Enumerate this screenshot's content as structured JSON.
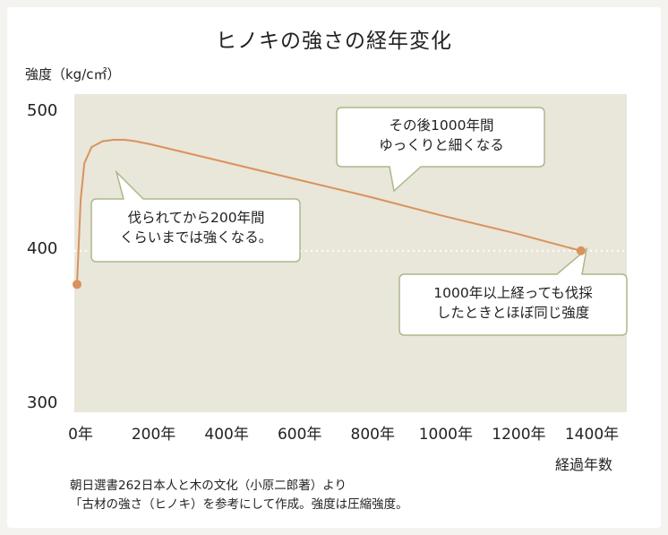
{
  "title": "ヒノキの強さの経年変化",
  "chart_data": {
    "type": "line",
    "title": "ヒノキの強さの経年変化",
    "ylabel": "強度（kg/c㎡）",
    "xlabel": "経過年数",
    "xlim": [
      0,
      1400
    ],
    "ylim": [
      300,
      500
    ],
    "x_ticks": [
      "0年",
      "200年",
      "400年",
      "600年",
      "800年",
      "1000年",
      "1200年",
      "1400年"
    ],
    "y_ticks": [
      "300",
      "400",
      "500"
    ],
    "series": [
      {
        "x": [
          0,
          10,
          20,
          40,
          70,
          100,
          130,
          160,
          200,
          300,
          400,
          600,
          800,
          1000,
          1200,
          1380
        ],
        "values": [
          382,
          440,
          465,
          476,
          480,
          481,
          481,
          480,
          478,
          472,
          466,
          454,
          442,
          429,
          417,
          405
        ]
      }
    ],
    "reference_line": {
      "y": 405
    },
    "grid": false
  },
  "callouts": {
    "top": [
      "その後1000年間",
      "ゆっくりと細くなる"
    ],
    "left": [
      "伐られてから200年間",
      "くらいまでは強くなる。"
    ],
    "right": [
      "1000年以上経っても伐採",
      "したときとほぼ同じ強度"
    ]
  },
  "source": {
    "line1": "朝日選書262日本人と木の文化（小原二郎著）より",
    "line2": "「古材の強さ（ヒノキ）を参考にして作成。強度は圧縮強度。"
  },
  "colors": {
    "plot_bg": "#e9e6da",
    "line": "#d9935c",
    "callout_border": "#aab98a"
  }
}
